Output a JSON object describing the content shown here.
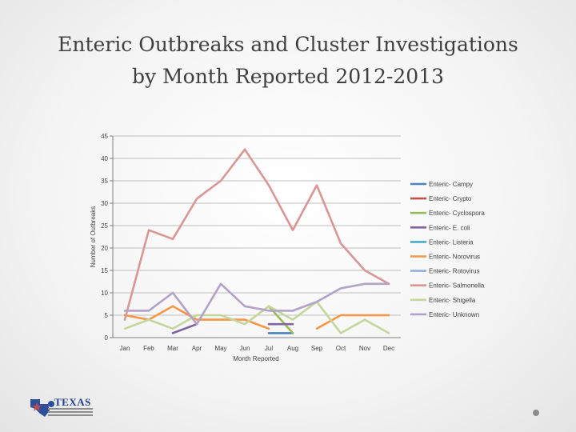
{
  "title_line1": "Enteric Outbreaks and Cluster Investigations",
  "title_line2": "by Month Reported 2012-2013",
  "logo": {
    "text": "TEXAS",
    "icon": "texas-dshs-logo"
  },
  "chart_data": {
    "type": "line",
    "xlabel": "Month Reported",
    "ylabel": "Number of Outbreaks",
    "categories": [
      "Jan",
      "Feb",
      "Mar",
      "Apr",
      "May",
      "Jun",
      "Jul",
      "Aug",
      "Sep",
      "Oct",
      "Nov",
      "Dec"
    ],
    "ylim": [
      0,
      45
    ],
    "yticks": [
      0,
      5,
      10,
      15,
      20,
      25,
      30,
      35,
      40,
      45
    ],
    "grid": "horizontal",
    "legend_position": "right",
    "series": [
      {
        "name": "Enteric- Campy",
        "color": "#4f81bd",
        "values": [
          null,
          null,
          null,
          null,
          null,
          null,
          1,
          1,
          null,
          null,
          null,
          null
        ]
      },
      {
        "name": "Enteric- Crypto",
        "color": "#c0504d",
        "values": [
          null,
          null,
          null,
          null,
          null,
          null,
          null,
          null,
          null,
          null,
          null,
          null
        ]
      },
      {
        "name": "Enteric- Cyclospora",
        "color": "#9bbb59",
        "values": [
          null,
          null,
          null,
          null,
          null,
          null,
          7,
          1,
          null,
          null,
          null,
          null
        ]
      },
      {
        "name": "Enteric- E. coli",
        "color": "#8064a2",
        "values": [
          null,
          null,
          1,
          3,
          null,
          null,
          3,
          3,
          null,
          null,
          null,
          null
        ]
      },
      {
        "name": "Enteric- Listeria",
        "color": "#4bacc6",
        "values": [
          null,
          null,
          null,
          null,
          null,
          null,
          null,
          null,
          null,
          null,
          null,
          null
        ]
      },
      {
        "name": "Enteric- Norovirus",
        "color": "#f79646",
        "values": [
          5,
          4,
          7,
          4,
          4,
          4,
          2,
          null,
          2,
          5,
          5,
          5
        ]
      },
      {
        "name": "Enteric- Rotovirus",
        "color": "#95b3d7",
        "values": [
          null,
          null,
          null,
          null,
          null,
          null,
          null,
          null,
          null,
          null,
          null,
          null
        ]
      },
      {
        "name": "Enteric- Salmonella",
        "color": "#d99694",
        "values": [
          4,
          24,
          22,
          31,
          35,
          42,
          34,
          24,
          34,
          21,
          15,
          12
        ]
      },
      {
        "name": "Enteric- Shigella",
        "color": "#c3d69b",
        "values": [
          2,
          4,
          2,
          5,
          5,
          3,
          7,
          4,
          8,
          1,
          4,
          1
        ]
      },
      {
        "name": "Enteric- Unknown",
        "color": "#b3a2c7",
        "values": [
          6,
          6,
          10,
          3,
          12,
          7,
          6,
          6,
          8,
          11,
          12,
          12
        ]
      }
    ]
  }
}
